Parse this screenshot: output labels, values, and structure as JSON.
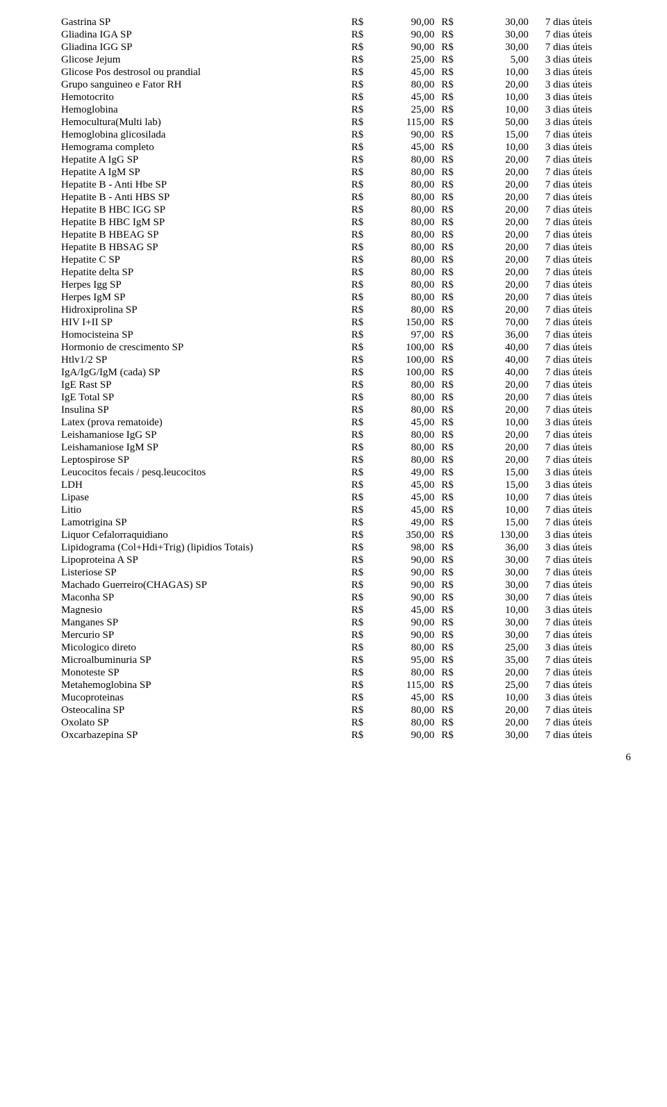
{
  "currency": "R$",
  "page_number": "6",
  "rows": [
    {
      "name": "Gastrina SP",
      "v1": "90,00",
      "v2": "30,00",
      "days": "7 dias úteis"
    },
    {
      "name": "Gliadina IGA SP",
      "v1": "90,00",
      "v2": "30,00",
      "days": "7 dias úteis"
    },
    {
      "name": "Gliadina IGG SP",
      "v1": "90,00",
      "v2": "30,00",
      "days": "7 dias úteis"
    },
    {
      "name": "Glicose Jejum",
      "v1": "25,00",
      "v2": "5,00",
      "days": "3 dias úteis"
    },
    {
      "name": "Glicose Pos destrosol ou prandial",
      "v1": "45,00",
      "v2": "10,00",
      "days": "3 dias úteis"
    },
    {
      "name": "Grupo sanguineo e Fator RH",
      "v1": "80,00",
      "v2": "20,00",
      "days": "3 dias úteis"
    },
    {
      "name": "Hemotocrito",
      "v1": "45,00",
      "v2": "10,00",
      "days": "3 dias úteis"
    },
    {
      "name": "Hemoglobina",
      "v1": "25,00",
      "v2": "10,00",
      "days": "3 dias úteis"
    },
    {
      "name": "Hemocultura(Multi lab)",
      "v1": "115,00",
      "v2": "50,00",
      "days": "3 dias úteis"
    },
    {
      "name": "Hemoglobina glicosilada",
      "v1": "90,00",
      "v2": "15,00",
      "days": "7 dias úteis"
    },
    {
      "name": "Hemograma completo",
      "v1": "45,00",
      "v2": "10,00",
      "days": "3 dias úteis"
    },
    {
      "name": "Hepatite A IgG SP",
      "v1": "80,00",
      "v2": "20,00",
      "days": "7 dias úteis"
    },
    {
      "name": "Hepatite A IgM SP",
      "v1": "80,00",
      "v2": "20,00",
      "days": "7 dias úteis"
    },
    {
      "name": "Hepatite B - Anti Hbe SP",
      "v1": "80,00",
      "v2": "20,00",
      "days": "7 dias úteis"
    },
    {
      "name": "Hepatite B - Anti HBS SP",
      "v1": "80,00",
      "v2": "20,00",
      "days": "7 dias úteis"
    },
    {
      "name": "Hepatite B HBC IGG SP",
      "v1": "80,00",
      "v2": "20,00",
      "days": "7 dias úteis"
    },
    {
      "name": "Hepatite B HBC IgM SP",
      "v1": "80,00",
      "v2": "20,00",
      "days": "7 dias úteis"
    },
    {
      "name": "Hepatite B HBEAG SP",
      "v1": "80,00",
      "v2": "20,00",
      "days": "7 dias úteis"
    },
    {
      "name": "Hepatite B HBSAG SP",
      "v1": "80,00",
      "v2": "20,00",
      "days": "7 dias úteis"
    },
    {
      "name": "Hepatite C SP",
      "v1": "80,00",
      "v2": "20,00",
      "days": "7 dias úteis"
    },
    {
      "name": "Hepatite delta SP",
      "v1": "80,00",
      "v2": "20,00",
      "days": "7 dias úteis"
    },
    {
      "name": "Herpes Igg SP",
      "v1": "80,00",
      "v2": "20,00",
      "days": "7 dias úteis"
    },
    {
      "name": "Herpes IgM SP",
      "v1": "80,00",
      "v2": "20,00",
      "days": "7 dias úteis"
    },
    {
      "name": "Hidroxiprolina SP",
      "v1": "80,00",
      "v2": "20,00",
      "days": "7 dias úteis"
    },
    {
      "name": "HIV I+II SP",
      "v1": "150,00",
      "v2": "70,00",
      "days": "7 dias úteis"
    },
    {
      "name": "Homocisteina SP",
      "v1": "97,00",
      "v2": "36,00",
      "days": "7 dias úteis"
    },
    {
      "name": "Hormonio de crescimento SP",
      "v1": "100,00",
      "v2": "40,00",
      "days": "7 dias úteis"
    },
    {
      "name": "Htlv1/2 SP",
      "v1": "100,00",
      "v2": "40,00",
      "days": "7 dias úteis"
    },
    {
      "name": "IgA/IgG/IgM (cada) SP",
      "v1": "100,00",
      "v2": "40,00",
      "days": "7 dias úteis"
    },
    {
      "name": "IgE Rast SP",
      "v1": "80,00",
      "v2": "20,00",
      "days": "7 dias úteis"
    },
    {
      "name": "IgE Total SP",
      "v1": "80,00",
      "v2": "20,00",
      "days": "7 dias úteis"
    },
    {
      "name": "Insulina SP",
      "v1": "80,00",
      "v2": "20,00",
      "days": "7 dias úteis"
    },
    {
      "name": "Latex (prova rematoide)",
      "v1": "45,00",
      "v2": "10,00",
      "days": "3 dias úteis"
    },
    {
      "name": "Leishamaniose IgG SP",
      "v1": "80,00",
      "v2": "20,00",
      "days": "7 dias úteis"
    },
    {
      "name": "Leishamaniose IgM SP",
      "v1": "80,00",
      "v2": "20,00",
      "days": "7 dias úteis"
    },
    {
      "name": "Leptospirose SP",
      "v1": "80,00",
      "v2": "20,00",
      "days": "7 dias úteis"
    },
    {
      "name": "Leucocitos fecais / pesq.leucocitos",
      "v1": "49,00",
      "v2": "15,00",
      "days": "3 dias úteis"
    },
    {
      "name": "LDH",
      "v1": "45,00",
      "v2": "15,00",
      "days": "3 dias úteis"
    },
    {
      "name": "Lipase",
      "v1": "45,00",
      "v2": "10,00",
      "days": "7 dias úteis"
    },
    {
      "name": "Litio",
      "v1": "45,00",
      "v2": "10,00",
      "days": "7 dias úteis"
    },
    {
      "name": "Lamotrigina SP",
      "v1": "49,00",
      "v2": "15,00",
      "days": "7 dias úteis"
    },
    {
      "name": "Liquor Cefalorraquidiano",
      "v1": "350,00",
      "v2": "130,00",
      "days": "3 dias úteis"
    },
    {
      "name": "Lipidograma (Col+Hdi+Trig) (lipidios Totais)",
      "v1": "98,00",
      "v2": "36,00",
      "days": "3 dias úteis"
    },
    {
      "name": "Lipoproteina A SP",
      "v1": "90,00",
      "v2": "30,00",
      "days": "7 dias úteis"
    },
    {
      "name": "Listeriose SP",
      "v1": "90,00",
      "v2": "30,00",
      "days": "7 dias úteis"
    },
    {
      "name": "Machado Guerreiro(CHAGAS) SP",
      "v1": "90,00",
      "v2": "30,00",
      "days": "7 dias úteis"
    },
    {
      "name": "Maconha SP",
      "v1": "90,00",
      "v2": "30,00",
      "days": "7 dias úteis"
    },
    {
      "name": "Magnesio",
      "v1": "45,00",
      "v2": "10,00",
      "days": "3 dias úteis"
    },
    {
      "name": "Manganes SP",
      "v1": "90,00",
      "v2": "30,00",
      "days": "7 dias úteis"
    },
    {
      "name": "Mercurio SP",
      "v1": "90,00",
      "v2": "30,00",
      "days": "7 dias úteis"
    },
    {
      "name": "Micologico direto",
      "v1": "80,00",
      "v2": "25,00",
      "days": "3 dias úteis"
    },
    {
      "name": "Microalbuminuria SP",
      "v1": "95,00",
      "v2": "35,00",
      "days": "7 dias úteis"
    },
    {
      "name": "Monoteste SP",
      "v1": "80,00",
      "v2": "20,00",
      "days": "7 dias úteis"
    },
    {
      "name": "Metahemoglobina SP",
      "v1": "115,00",
      "v2": "25,00",
      "days": "7 dias úteis"
    },
    {
      "name": "Mucoproteinas",
      "v1": "45,00",
      "v2": "10,00",
      "days": "3 dias úteis"
    },
    {
      "name": "Osteocalina SP",
      "v1": "80,00",
      "v2": "20,00",
      "days": "7 dias úteis"
    },
    {
      "name": "Oxolato SP",
      "v1": "80,00",
      "v2": "20,00",
      "days": "7 dias úteis"
    },
    {
      "name": "Oxcarbazepina SP",
      "v1": "90,00",
      "v2": "30,00",
      "days": "7 dias úteis"
    }
  ]
}
